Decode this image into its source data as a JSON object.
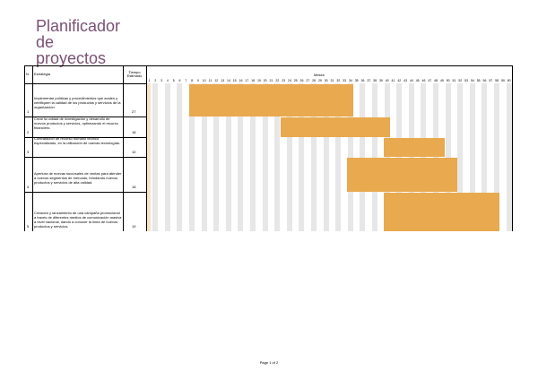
{
  "document": {
    "title_lines": [
      "Planificador",
      "de",
      "proyectos"
    ],
    "footer": "Page 1 of 2"
  },
  "table": {
    "col_number": "N",
    "col_strategy": "Estrategia",
    "col_time": "Tiempo Estimado",
    "col_months": "Meses",
    "week_numbers": [
      "1",
      "2",
      "3",
      "4",
      "5",
      "6",
      "7",
      "8",
      "9",
      "10",
      "11",
      "12",
      "13",
      "14",
      "15",
      "16",
      "17",
      "18",
      "19",
      "20",
      "21",
      "22",
      "23",
      "24",
      "25",
      "26",
      "27",
      "28",
      "29",
      "30",
      "31",
      "32",
      "33",
      "34",
      "35",
      "36",
      "37",
      "38",
      "39",
      "40",
      "41",
      "42",
      "43",
      "44",
      "45",
      "46",
      "47",
      "48",
      "49",
      "50",
      "51",
      "52",
      "53",
      "54",
      "55",
      "56",
      "57",
      "58",
      "59",
      "60"
    ],
    "rows": [
      {
        "num": "1",
        "strategy": "Implementar políticas y procedimientos que avalen y certifiquen la calidad de los productos y servicios de la organización",
        "time": "27",
        "start": 7,
        "duration": 27
      },
      {
        "num": "2",
        "strategy": "Crear la unidad de investigación y desarrollo de nuevos productos y servicios, optimizando el recurso financiero.",
        "time": "18",
        "start": 22,
        "duration": 18
      },
      {
        "num": "3",
        "strategy": "Contratación de recurso humano técnico especializado, en la utilización de nuevas tecnologías.",
        "time": "10",
        "start": 39,
        "duration": 10
      },
      {
        "num": "4",
        "strategy": "Apertura de nuevas sucursales de ventas para atender a nuevos segmentos de mercado, brindando nuevos productos y servicios de alta calidad.",
        "time": "18",
        "start": 33,
        "duration": 18
      },
      {
        "num": "5",
        "strategy": "Creación y lanzamiento de una campaña promocional a través de diferentes medios de comunicación masiva a nivel nacional, dando a conocer la línea de nuevos productos y servicios.",
        "time": "19",
        "start": 39,
        "duration": 19
      }
    ]
  },
  "colors": {
    "title": "#7a5273",
    "bar": "#e8a94f",
    "first_column": "#f8e3c6",
    "stripe": "#e7e7e7"
  }
}
